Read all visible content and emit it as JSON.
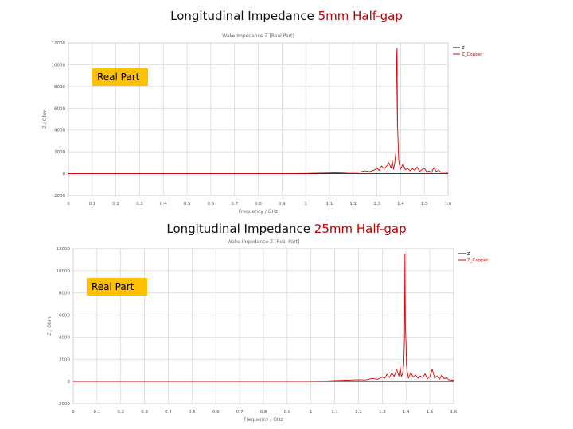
{
  "slide": {
    "title1_prefix": "Longitudinal Impedance ",
    "title1_highlight": "5mm Half-gap",
    "title2_prefix": "Longitudinal Impedance ",
    "title2_highlight": "25mm Half-gap",
    "badge1": "Real Part",
    "badge2": "Real Part"
  },
  "chart_data": [
    {
      "type": "line",
      "title": "Wake Impedance Z [Real Part]",
      "xlabel": "Frequency / GHz",
      "ylabel": "Z / Ohm",
      "xlim": [
        0,
        1.6
      ],
      "ylim": [
        -2000,
        12000
      ],
      "x_ticks": [
        "0",
        "0.1",
        "0.2",
        "0.3",
        "0.4",
        "0.5",
        "0.6",
        "0.7",
        "0.8",
        "0.9",
        "1",
        "1.1",
        "1.2",
        "1.3",
        "1.4",
        "1.5",
        "1.6"
      ],
      "y_ticks": [
        "12000",
        "10000",
        "8000",
        "6000",
        "4000",
        "2000",
        "0",
        "-2000"
      ],
      "grid": true,
      "legend_position": "right",
      "series": [
        {
          "name": "Z",
          "color": "#000000",
          "x": [
            0,
            1.6
          ],
          "y": [
            0,
            0
          ]
        },
        {
          "name": "Z_Copper",
          "color": "#e00000",
          "x": [
            0,
            0.9,
            1.0,
            1.1,
            1.15,
            1.2,
            1.22,
            1.25,
            1.27,
            1.29,
            1.3,
            1.31,
            1.32,
            1.33,
            1.34,
            1.35,
            1.36,
            1.365,
            1.37,
            1.375,
            1.38,
            1.383,
            1.385,
            1.387,
            1.39,
            1.392,
            1.395,
            1.4,
            1.41,
            1.42,
            1.43,
            1.44,
            1.45,
            1.46,
            1.47,
            1.48,
            1.49,
            1.5,
            1.51,
            1.52,
            1.53,
            1.54,
            1.55,
            1.56,
            1.57,
            1.58,
            1.6
          ],
          "y": [
            0,
            0,
            20,
            60,
            90,
            140,
            120,
            250,
            180,
            350,
            500,
            300,
            700,
            450,
            650,
            1000,
            500,
            1200,
            400,
            900,
            2000,
            10500,
            11500,
            4500,
            2500,
            1200,
            800,
            400,
            900,
            350,
            500,
            250,
            450,
            300,
            600,
            200,
            350,
            500,
            150,
            250,
            100,
            550,
            200,
            300,
            120,
            150,
            100
          ]
        }
      ]
    },
    {
      "type": "line",
      "title": "Wake Impedance Z [Real Part]",
      "xlabel": "Frequency / GHz",
      "ylabel": "Z / Ohm",
      "xlim": [
        0,
        1.6
      ],
      "ylim": [
        -2000,
        12000
      ],
      "x_ticks": [
        "0",
        "0.1",
        "0.2",
        "0.3",
        "0.4",
        "0.5",
        "0.6",
        "0.7",
        "0.8",
        "0.9",
        "1",
        "1.1",
        "1.2",
        "1.3",
        "1.4",
        "1.5",
        "1.6"
      ],
      "y_ticks": [
        "12000",
        "10000",
        "8000",
        "6000",
        "4000",
        "2000",
        "0",
        "-2000"
      ],
      "grid": true,
      "legend_position": "right",
      "series": [
        {
          "name": "Z",
          "color": "#000000",
          "x": [
            0,
            1.6
          ],
          "y": [
            0,
            0
          ]
        },
        {
          "name": "Z_Copper",
          "color": "#e00000",
          "x": [
            0,
            0.95,
            1.05,
            1.1,
            1.15,
            1.2,
            1.23,
            1.26,
            1.28,
            1.3,
            1.31,
            1.32,
            1.33,
            1.34,
            1.35,
            1.36,
            1.37,
            1.375,
            1.38,
            1.385,
            1.39,
            1.393,
            1.395,
            1.397,
            1.4,
            1.402,
            1.405,
            1.41,
            1.42,
            1.43,
            1.44,
            1.45,
            1.46,
            1.47,
            1.48,
            1.49,
            1.5,
            1.51,
            1.52,
            1.53,
            1.54,
            1.55,
            1.56,
            1.57,
            1.58,
            1.6
          ],
          "y": [
            0,
            0,
            30,
            80,
            120,
            160,
            140,
            280,
            200,
            400,
            300,
            650,
            350,
            800,
            450,
            1100,
            500,
            1300,
            450,
            700,
            1500,
            3800,
            11500,
            5000,
            3500,
            1500,
            900,
            300,
            800,
            400,
            600,
            300,
            500,
            350,
            700,
            250,
            450,
            1100,
            300,
            500,
            200,
            600,
            250,
            350,
            150,
            120
          ]
        }
      ]
    }
  ]
}
